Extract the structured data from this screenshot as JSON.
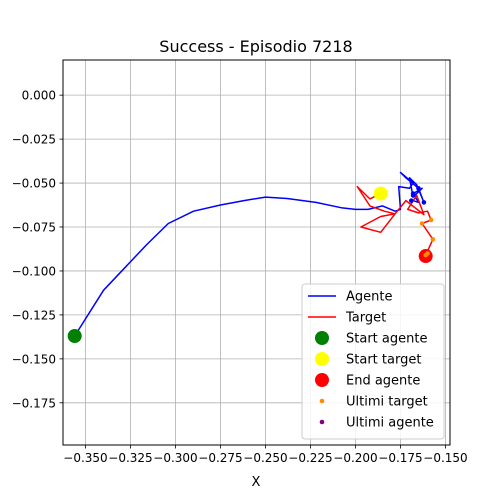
{
  "chart_data": {
    "type": "line",
    "title": "Success - Episodio 7218",
    "xlabel": "X",
    "ylabel": "",
    "xlim": [
      -0.3625,
      -0.1475
    ],
    "ylim": [
      -0.199,
      0.02
    ],
    "grid": true,
    "legend_position": "lower right",
    "xticks": [
      -0.35,
      -0.325,
      -0.3,
      -0.275,
      -0.25,
      -0.225,
      -0.2,
      -0.175,
      -0.15
    ],
    "xtick_labels": [
      "−0.350",
      "−0.325",
      "−0.300",
      "−0.275",
      "−0.250",
      "−0.225",
      "−0.200",
      "−0.175",
      "−0.150"
    ],
    "yticks": [
      0.0,
      -0.025,
      -0.05,
      -0.075,
      -0.1,
      -0.125,
      -0.15,
      -0.175
    ],
    "ytick_labels": [
      "0.000",
      "−0.025",
      "−0.050",
      "−0.075",
      "−0.100",
      "−0.125",
      "−0.150",
      "−0.175"
    ],
    "series": [
      {
        "name": "Agente",
        "kind": "line",
        "color": "#0000ff",
        "points": [
          [
            -0.356,
            -0.137
          ],
          [
            -0.34,
            -0.111
          ],
          [
            -0.316,
            -0.085
          ],
          [
            -0.304,
            -0.073
          ],
          [
            -0.29,
            -0.066
          ],
          [
            -0.275,
            -0.0625
          ],
          [
            -0.262,
            -0.06
          ],
          [
            -0.25,
            -0.058
          ],
          [
            -0.238,
            -0.0588
          ],
          [
            -0.222,
            -0.061
          ],
          [
            -0.208,
            -0.064
          ],
          [
            -0.2,
            -0.065
          ],
          [
            -0.193,
            -0.065
          ],
          [
            -0.185,
            -0.063
          ],
          [
            -0.178,
            -0.066
          ],
          [
            -0.175,
            -0.065
          ],
          [
            -0.176,
            -0.052
          ],
          [
            -0.17,
            -0.053
          ],
          [
            -0.168,
            -0.05
          ],
          [
            -0.175,
            -0.044
          ],
          [
            -0.172,
            -0.047
          ],
          [
            -0.165,
            -0.053
          ],
          [
            -0.162,
            -0.061
          ],
          [
            -0.166,
            -0.051
          ],
          [
            -0.17,
            -0.047
          ],
          [
            -0.168,
            -0.058
          ],
          [
            -0.163,
            -0.053
          ],
          [
            -0.168,
            -0.056
          ],
          [
            -0.165,
            -0.061
          ],
          [
            -0.168,
            -0.06
          ]
        ]
      },
      {
        "name": "Target",
        "kind": "line",
        "color": "#ff0000",
        "points": [
          [
            -0.186,
            -0.056
          ],
          [
            -0.192,
            -0.059
          ],
          [
            -0.199,
            -0.052
          ],
          [
            -0.192,
            -0.063
          ],
          [
            -0.184,
            -0.066
          ],
          [
            -0.178,
            -0.0675
          ],
          [
            -0.186,
            -0.078
          ],
          [
            -0.197,
            -0.075
          ],
          [
            -0.186,
            -0.069
          ],
          [
            -0.178,
            -0.0675
          ],
          [
            -0.172,
            -0.06
          ],
          [
            -0.162,
            -0.068
          ],
          [
            -0.166,
            -0.057
          ],
          [
            -0.171,
            -0.065
          ],
          [
            -0.165,
            -0.067
          ],
          [
            -0.16,
            -0.066
          ],
          [
            -0.158,
            -0.071
          ],
          [
            -0.163,
            -0.073
          ],
          [
            -0.157,
            -0.082
          ],
          [
            -0.161,
            -0.091
          ]
        ]
      },
      {
        "name": "Start agente",
        "kind": "marker",
        "color": "#008000",
        "size": 7,
        "points": [
          [
            -0.356,
            -0.137
          ]
        ]
      },
      {
        "name": "Start target",
        "kind": "marker",
        "color": "#ffff00",
        "size": 7,
        "points": [
          [
            -0.186,
            -0.056
          ]
        ]
      },
      {
        "name": "End agente",
        "kind": "marker",
        "color": "#ff0000",
        "size": 7,
        "points": [
          [
            -0.161,
            -0.0915
          ]
        ]
      },
      {
        "name": "Ultimi target",
        "kind": "marker",
        "color": "#ff8c00",
        "size": 2.3,
        "points": [
          [
            -0.158,
            -0.071
          ],
          [
            -0.163,
            -0.073
          ],
          [
            -0.157,
            -0.082
          ],
          [
            -0.16,
            -0.09
          ],
          [
            -0.161,
            -0.091
          ]
        ]
      },
      {
        "name": "Ultimi agente",
        "kind": "marker",
        "color": "#800080",
        "size": 2.3,
        "points": []
      },
      {
        "name": "",
        "kind": "marker",
        "color": "#0000ff",
        "size": 2.3,
        "points": [
          [
            -0.168,
            -0.057
          ],
          [
            -0.165,
            -0.053
          ],
          [
            -0.162,
            -0.061
          ],
          [
            -0.169,
            -0.06
          ],
          [
            -0.168,
            -0.056
          ]
        ]
      }
    ]
  }
}
